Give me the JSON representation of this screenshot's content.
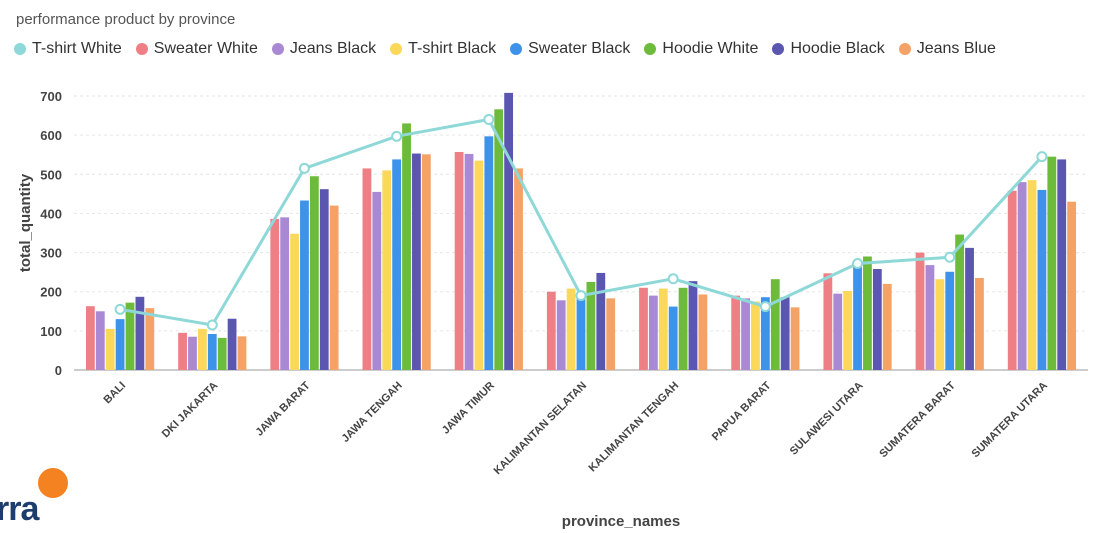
{
  "colors": {
    "T-shirt White": "#8fd8d8",
    "Sweater White": "#ee8085",
    "Jeans Black": "#a988d4",
    "T-shirt Black": "#fbd85a",
    "Sweater Black": "#3d93ea",
    "Hoodie White": "#6cbb3a",
    "Hoodie Black": "#5b57b0",
    "Jeans Blue": "#f4a266"
  },
  "logo": {
    "text": "rra"
  },
  "chart_data": {
    "type": "bar",
    "title": "performance product by province",
    "xlabel": "province_names",
    "ylabel": "total_quantity",
    "ylim": [
      0,
      700
    ],
    "yticks": [
      0,
      100,
      200,
      300,
      400,
      500,
      600,
      700
    ],
    "grid": true,
    "legend": "top-left",
    "categories": [
      "BALI",
      "DKI JAKARTA",
      "JAWA BARAT",
      "JAWA TENGAH",
      "JAWA TIMUR",
      "KALIMANTAN SELATAN",
      "KALIMANTAN TENGAH",
      "PAPUA BARAT",
      "SULAWESI UTARA",
      "SUMATERA BARAT",
      "SUMATERA UTARA"
    ],
    "line_series": {
      "name": "T-shirt White",
      "values": [
        155,
        115,
        515,
        597,
        640,
        190,
        233,
        162,
        272,
        288,
        545
      ]
    },
    "series": [
      {
        "name": "Sweater White",
        "values": [
          163,
          95,
          386,
          515,
          557,
          200,
          210,
          190,
          247,
          300,
          458
        ]
      },
      {
        "name": "Jeans Black",
        "values": [
          150,
          85,
          390,
          455,
          552,
          178,
          190,
          183,
          195,
          268,
          480
        ]
      },
      {
        "name": "T-shirt Black",
        "values": [
          105,
          105,
          348,
          510,
          535,
          208,
          208,
          175,
          202,
          232,
          485
        ]
      },
      {
        "name": "Sweater Black",
        "values": [
          130,
          92,
          433,
          538,
          597,
          195,
          162,
          186,
          270,
          251,
          460
        ]
      },
      {
        "name": "Hoodie White",
        "values": [
          172,
          82,
          495,
          630,
          666,
          225,
          210,
          232,
          290,
          346,
          545
        ]
      },
      {
        "name": "Hoodie Black",
        "values": [
          187,
          131,
          462,
          553,
          708,
          248,
          227,
          186,
          258,
          312,
          538
        ]
      },
      {
        "name": "Jeans Blue",
        "values": [
          158,
          86,
          420,
          551,
          515,
          183,
          193,
          160,
          220,
          235,
          430
        ]
      }
    ]
  }
}
